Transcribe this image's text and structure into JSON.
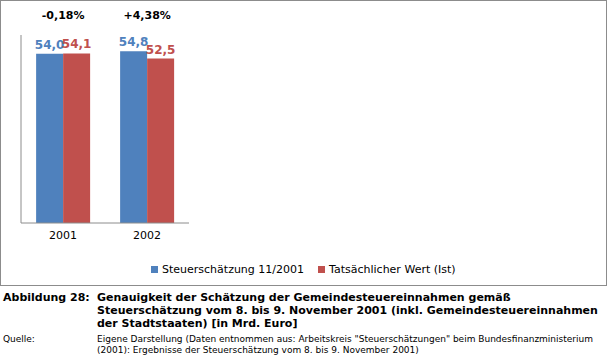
{
  "chart_data": {
    "type": "bar",
    "categories": [
      "2001",
      "2002"
    ],
    "series": [
      {
        "name": "Steuerschätzung 11/2001",
        "color": "#4f81bd",
        "values": [
          54.0,
          54.8
        ],
        "value_labels": [
          "54,0",
          "54,8"
        ]
      },
      {
        "name": "Tatsächlicher Wert (Ist)",
        "color": "#c0504d",
        "values": [
          54.1,
          52.5
        ],
        "value_labels": [
          "54,1",
          "52,5"
        ]
      }
    ],
    "annotations": [
      "-0,18%",
      "+4,38%"
    ],
    "ylim": [
      0,
      60
    ],
    "data_labels": true,
    "tick_labels": "x",
    "legend": "bottom"
  },
  "caption": {
    "label": "Abbildung 28:",
    "text": "Genauigkeit der Schätzung der Gemeindesteuereinnahmen gemäß Steuerschätzung vom 8. bis 9. November 2001 (inkl. Gemeindesteuereinnahmen der Stadtstaaten) [in Mrd. Euro]",
    "source_label": "Quelle:",
    "source": "Eigene Darstellung (Daten entnommen aus: Arbeitskreis \"Steuerschätzungen\" beim Bundesfinanzministerium (2001): Ergebnisse der Steuerschätzung vom 8. bis 9. November 2001)"
  }
}
